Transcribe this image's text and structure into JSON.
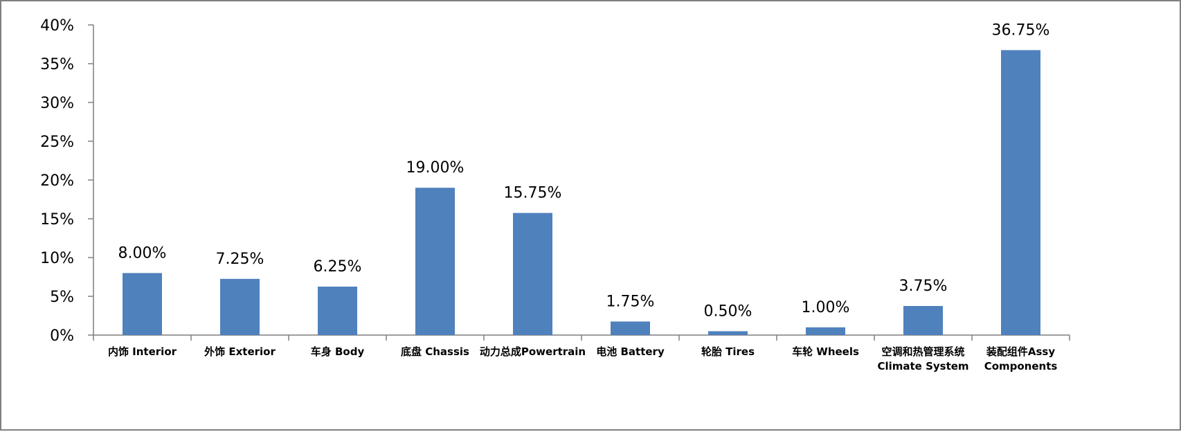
{
  "chart_data": {
    "type": "bar",
    "categories": [
      [
        "内饰 Interior"
      ],
      [
        "外饰 Exterior"
      ],
      [
        "车身 Body"
      ],
      [
        "底盘 Chassis"
      ],
      [
        "动力总成Powertrain"
      ],
      [
        "电池 Battery"
      ],
      [
        "轮胎 Tires"
      ],
      [
        "车轮 Wheels"
      ],
      [
        "空调和热管理系统",
        "Climate System"
      ],
      [
        "装配组件Assy",
        "Components"
      ]
    ],
    "values": [
      8.0,
      7.25,
      6.25,
      19.0,
      15.75,
      1.75,
      0.5,
      1.0,
      3.75,
      36.75
    ],
    "value_labels": [
      "8.00%",
      "7.25%",
      "6.25%",
      "19.00%",
      "15.75%",
      "1.75%",
      "0.50%",
      "1.00%",
      "3.75%",
      "36.75%"
    ],
    "y_ticks": [
      0,
      5,
      10,
      15,
      20,
      25,
      30,
      35,
      40
    ],
    "y_tick_labels": [
      "0%",
      "5%",
      "10%",
      "15%",
      "20%",
      "25%",
      "30%",
      "35%",
      "40%"
    ],
    "ylim": [
      0,
      40
    ],
    "title": "",
    "xlabel": "",
    "ylabel": "",
    "grid": false,
    "legend": "none",
    "colors": {
      "bar": "#4F81BD",
      "axis": "#7f7f7f"
    }
  }
}
